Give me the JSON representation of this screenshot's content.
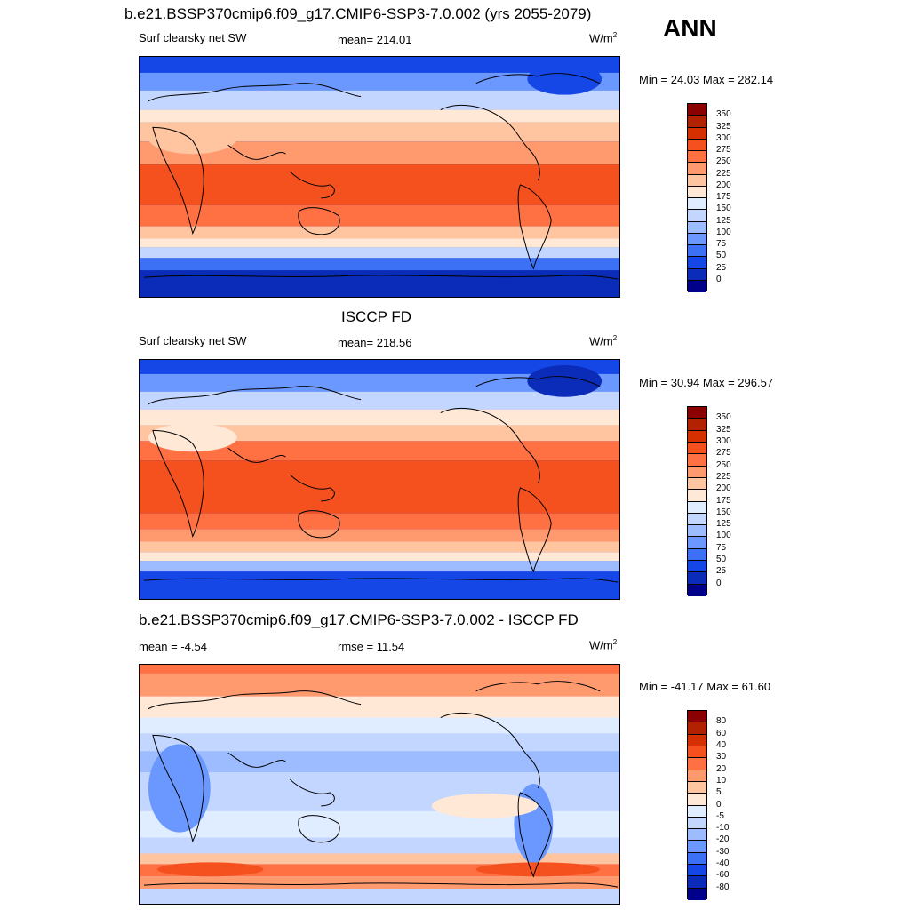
{
  "header": {
    "title": "b.e21.BSSP370cmip6.f09_g17.CMIP6-SSP3-7.0.002 (yrs 2055-2079)",
    "season": "ANN"
  },
  "panels": [
    {
      "title": "",
      "left_label": "Surf clearsky net SW",
      "center_label": "mean= 214.01",
      "units": "W/m",
      "units_sup": "2",
      "minmax": "Min =  24.03 Max = 282.14",
      "colorbar_labels": [
        "350",
        "325",
        "300",
        "275",
        "250",
        "225",
        "200",
        "175",
        "150",
        "125",
        "100",
        "75",
        "50",
        "25",
        "0"
      ]
    },
    {
      "title": "ISCCP FD",
      "left_label": "Surf clearsky net SW",
      "center_label": "mean= 218.56",
      "units": "W/m",
      "units_sup": "2",
      "minmax": "Min =  30.94 Max = 296.57",
      "colorbar_labels": [
        "350",
        "325",
        "300",
        "275",
        "250",
        "225",
        "200",
        "175",
        "150",
        "125",
        "100",
        "75",
        "50",
        "25",
        "0"
      ]
    },
    {
      "title": "b.e21.BSSP370cmip6.f09_g17.CMIP6-SSP3-7.0.002 - ISCCP FD",
      "left_label": "mean =  -4.54",
      "center_label": "rmse =  11.54",
      "units": "W/m",
      "units_sup": "2",
      "minmax": "Min = -41.17 Max =  61.60",
      "colorbar_labels": [
        "80",
        "60",
        "40",
        "30",
        "20",
        "10",
        "5",
        "0",
        "-5",
        "-10",
        "-20",
        "-30",
        "-40",
        "-60",
        "-80"
      ]
    }
  ],
  "colors": {
    "sw_scale": [
      "#8b0000",
      "#b22200",
      "#d63000",
      "#f4511e",
      "#ff7043",
      "#ff9a6e",
      "#ffc4a0",
      "#ffe8d6",
      "#e0ecff",
      "#c2d6ff",
      "#9cbcff",
      "#6b98ff",
      "#3c70f5",
      "#1547e6",
      "#0a2cb8",
      "#00008b"
    ],
    "diff_scale": [
      "#8b0000",
      "#b22200",
      "#d63000",
      "#f4511e",
      "#ff7043",
      "#ff9a6e",
      "#ffc4a0",
      "#ffe8d6",
      "#e0ecff",
      "#c2d6ff",
      "#9cbcff",
      "#6b98ff",
      "#3c70f5",
      "#1547e6",
      "#0a2cb8",
      "#00008b"
    ]
  }
}
